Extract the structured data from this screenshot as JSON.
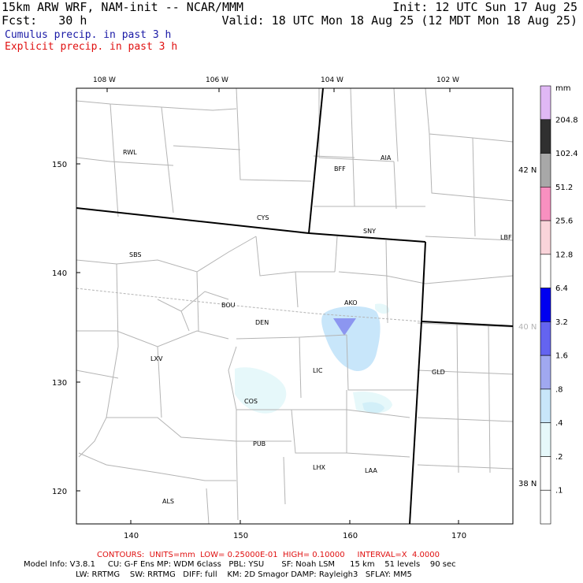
{
  "header": {
    "model_title": "15km ARW WRF, NAM-init -- NCAR/MMM",
    "init_time": "Init: 12 UTC Sun 17 Aug 25",
    "forecast_hour": "Fcst:   30 h",
    "valid_time": "Valid: 18 UTC Mon 18 Aug 25 (12 MDT Mon 18 Aug 25)",
    "field_cumulus": "Cumulus precip. in past 3 h",
    "field_explicit": "Explicit precip. in past 3 h",
    "cumulus_color": "#1a1aa6",
    "explicit_color": "#e01010"
  },
  "map": {
    "top_lon_labels": [
      "108 W",
      "106 W",
      "104 W",
      "102 W"
    ],
    "left_grid_labels": [
      "150",
      "140",
      "130",
      "120"
    ],
    "bottom_grid_labels": [
      "140",
      "150",
      "160",
      "170"
    ],
    "right_lat_labels": [
      "42 N",
      "40 N",
      "38 N"
    ],
    "cities": [
      "RWL",
      "BFF",
      "AIA",
      "CYS",
      "SNY",
      "LBF",
      "SBS",
      "AKO",
      "BOU",
      "DEN",
      "LXV",
      "LIC",
      "GLD",
      "COS",
      "PUB",
      "LHX",
      "LAA",
      "ALS"
    ]
  },
  "legend": {
    "unit": "mm",
    "levels": [
      "204.8",
      "102.4",
      "51.2",
      "25.6",
      "12.8",
      "6.4",
      "3.2",
      "1.6",
      ".8",
      ".4",
      ".2",
      ".1"
    ],
    "colors": [
      "#e0b8f5",
      "#303030",
      "#a8a8a8",
      "#f890c0",
      "#fad4da",
      "#ffffff",
      "#0000f0",
      "#6464f0",
      "#a0a8f0",
      "#c8e6fa",
      "#e6f8fa",
      "#ffffff",
      "#ffffff"
    ]
  },
  "footer": {
    "contours": "CONTOURS:  UNITS=mm  LOW= 0.25000E-01  HIGH= 0.10000     INTERVAL=X  4.0000",
    "model_info_1": "Model Info: V3.8.1     CU: G-F Ens MP: WDM 6class   PBL: YSU       SF: Noah LSM      15 km    51 levels    90 sec",
    "model_info_2": "LW: RRTMG    SW: RRTMG   DIFF: full    KM: 2D Smagor DAMP: Rayleigh3   SFLAY: MM5",
    "contours_color": "#e01010"
  }
}
